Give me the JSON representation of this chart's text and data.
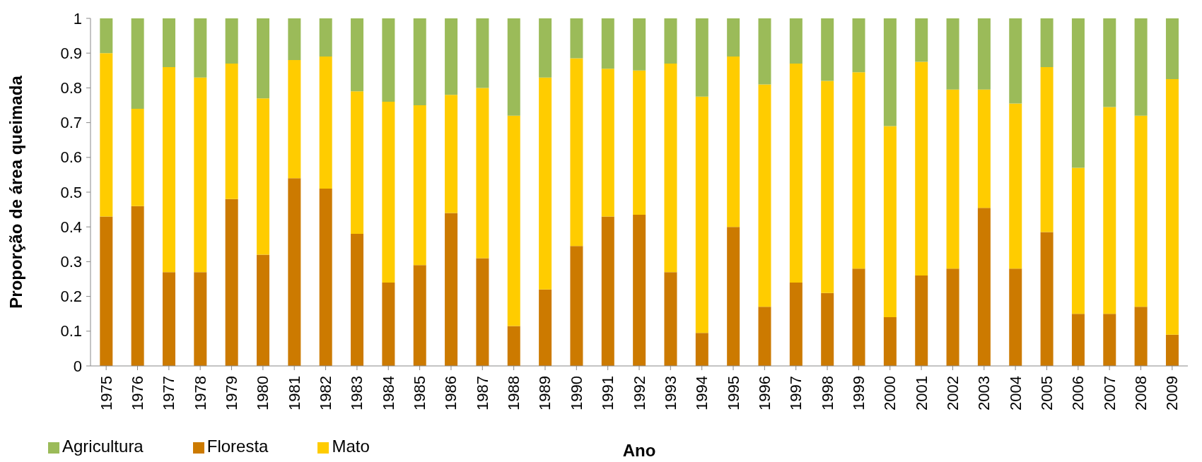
{
  "chart_data": {
    "type": "bar",
    "stacked": true,
    "xlabel": "Ano",
    "ylabel": "Proporção de área queimada",
    "categories": [
      "1975",
      "1976",
      "1977",
      "1978",
      "1979",
      "1980",
      "1981",
      "1982",
      "1983",
      "1984",
      "1985",
      "1986",
      "1987",
      "1988",
      "1989",
      "1990",
      "1991",
      "1992",
      "1993",
      "1994",
      "1995",
      "1996",
      "1997",
      "1998",
      "1999",
      "2000",
      "2001",
      "2002",
      "2003",
      "2004",
      "2005",
      "2006",
      "2007",
      "2008",
      "2009"
    ],
    "series": [
      {
        "name": "Floresta",
        "color": "#cc7a00",
        "values": [
          0.43,
          0.46,
          0.27,
          0.27,
          0.48,
          0.32,
          0.54,
          0.51,
          0.38,
          0.24,
          0.29,
          0.44,
          0.31,
          0.115,
          0.22,
          0.345,
          0.43,
          0.435,
          0.27,
          0.095,
          0.4,
          0.17,
          0.24,
          0.21,
          0.28,
          0.14,
          0.26,
          0.28,
          0.455,
          0.28,
          0.385,
          0.15,
          0.15,
          0.17,
          0.09
        ]
      },
      {
        "name": "Mato",
        "color": "#ffcc00",
        "values": [
          0.47,
          0.28,
          0.59,
          0.56,
          0.39,
          0.45,
          0.34,
          0.38,
          0.41,
          0.52,
          0.46,
          0.34,
          0.49,
          0.605,
          0.61,
          0.54,
          0.425,
          0.415,
          0.6,
          0.68,
          0.49,
          0.64,
          0.63,
          0.61,
          0.565,
          0.55,
          0.615,
          0.515,
          0.34,
          0.475,
          0.475,
          0.42,
          0.595,
          0.55,
          0.735
        ]
      },
      {
        "name": "Agricultura",
        "color": "#9bbb59",
        "values": [
          0.1,
          0.26,
          0.14,
          0.17,
          0.13,
          0.23,
          0.12,
          0.11,
          0.21,
          0.24,
          0.25,
          0.22,
          0.2,
          0.28,
          0.17,
          0.115,
          0.145,
          0.15,
          0.13,
          0.225,
          0.11,
          0.19,
          0.13,
          0.18,
          0.155,
          0.31,
          0.125,
          0.205,
          0.205,
          0.245,
          0.14,
          0.43,
          0.255,
          0.28,
          0.175
        ]
      }
    ],
    "ylim": [
      0,
      1
    ],
    "yticks": [
      0,
      0.1,
      0.2,
      0.3,
      0.4,
      0.5,
      0.6,
      0.7,
      0.8,
      0.9,
      1
    ],
    "grid": false,
    "legend": "bottom left"
  }
}
